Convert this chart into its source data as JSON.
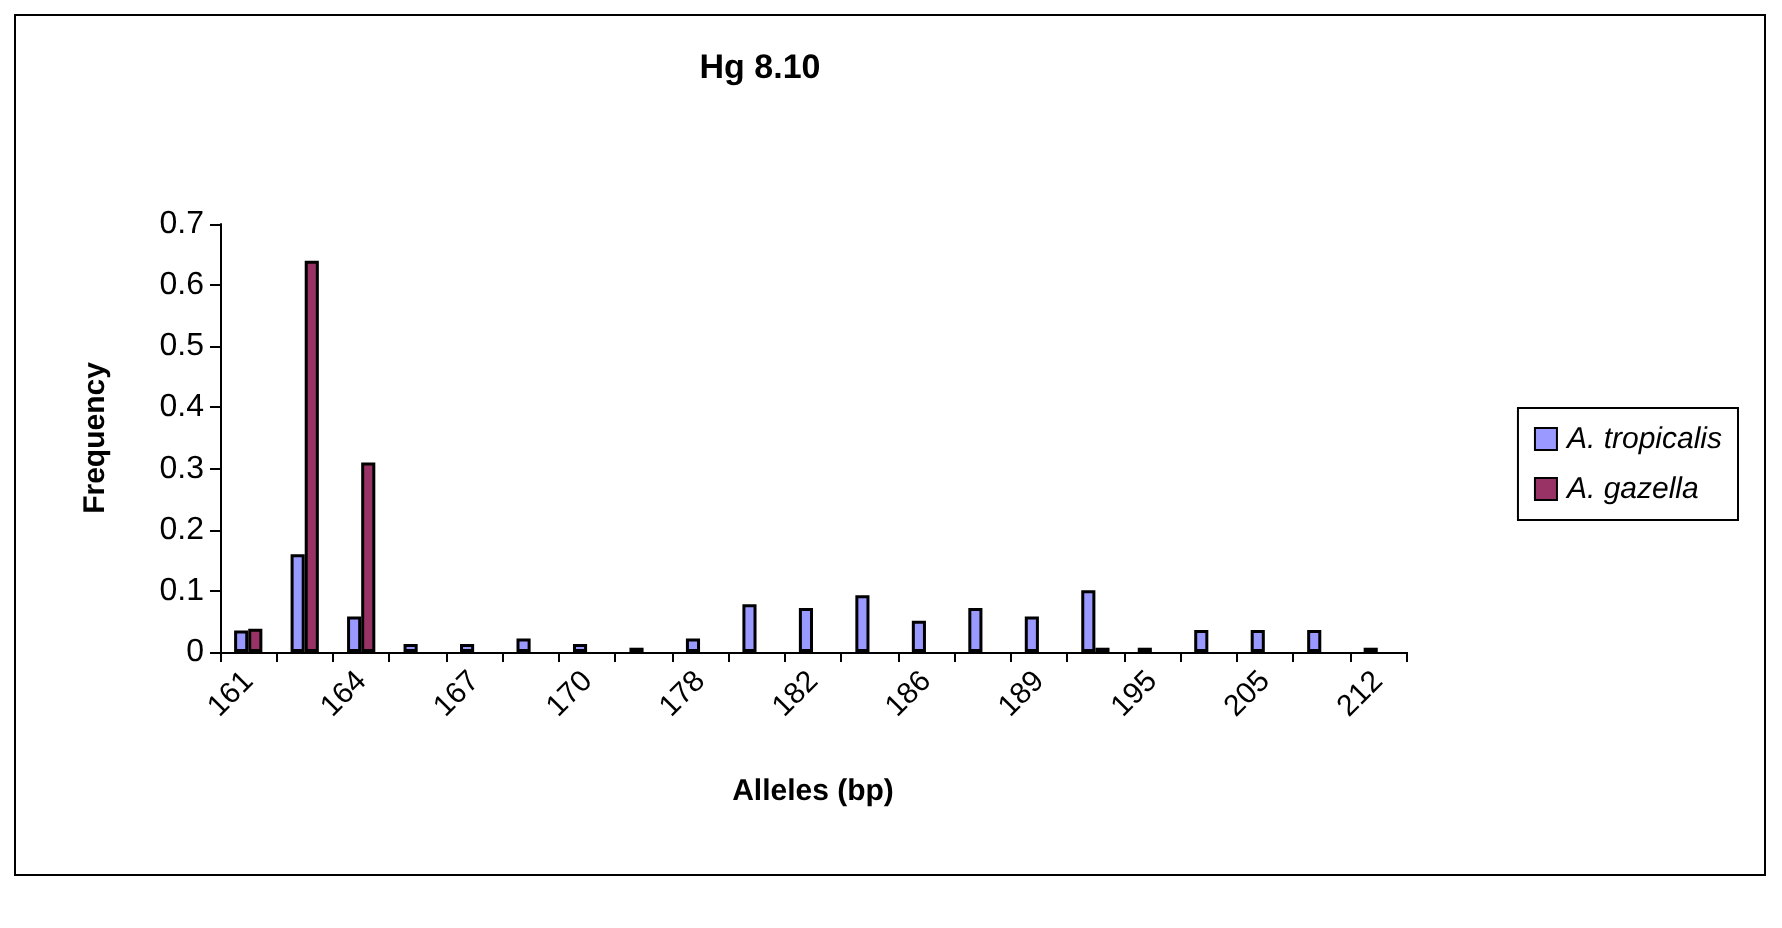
{
  "chart_data": {
    "type": "bar",
    "title": "Hg 8.10",
    "xlabel": "Alleles (bp)",
    "ylabel": "Frequency",
    "categories": [
      "161",
      null,
      "164",
      null,
      "167",
      null,
      "170",
      null,
      "178",
      null,
      "182",
      null,
      "186",
      null,
      "189",
      null,
      "195",
      null,
      "205",
      null,
      "212"
    ],
    "series": [
      {
        "name": "A. tropicalis",
        "color": "#9999ff",
        "values": [
          0.035,
          0.16,
          0.058,
          0.013,
          0.013,
          0.022,
          0.013,
          0.007,
          0.022,
          0.078,
          0.072,
          0.093,
          0.051,
          0.072,
          0.058,
          0.101,
          0.007,
          0.036,
          0.036,
          0.036,
          0.007
        ]
      },
      {
        "name": "A. gazella",
        "color": "#993366",
        "values": [
          0.038,
          0.64,
          0.31,
          null,
          null,
          null,
          null,
          null,
          null,
          null,
          null,
          null,
          null,
          null,
          null,
          0.007,
          null,
          null,
          null,
          null,
          null
        ]
      }
    ],
    "ylim": [
      0,
      0.7
    ],
    "yticks": [
      0,
      0.1,
      0.2,
      0.3,
      0.4,
      0.5,
      0.6,
      0.7
    ],
    "grid": false,
    "legend": "right"
  }
}
